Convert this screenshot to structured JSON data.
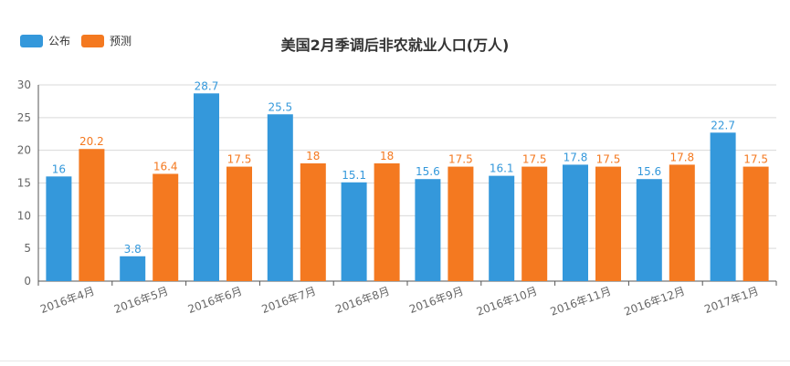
{
  "legend": {
    "items": [
      {
        "label": "公布",
        "color": "#3498DB"
      },
      {
        "label": "预测",
        "color": "#F47920"
      }
    ]
  },
  "chart_data": {
    "type": "bar",
    "title": "美国2月季调后非农就业人口(万人)",
    "xlabel": "",
    "ylabel": "",
    "categories": [
      "2016年4月",
      "2016年5月",
      "2016年6月",
      "2016年7月",
      "2016年8月",
      "2016年9月",
      "2016年10月",
      "2016年11月",
      "2016年12月",
      "2017年1月"
    ],
    "series": [
      {
        "name": "公布",
        "color": "#3498DB",
        "values": [
          16,
          3.8,
          28.7,
          25.5,
          15.1,
          15.6,
          16.1,
          17.8,
          15.6,
          22.7
        ]
      },
      {
        "name": "预测",
        "color": "#F47920",
        "values": [
          20.2,
          16.4,
          17.5,
          18,
          18,
          17.5,
          17.5,
          17.5,
          17.8,
          17.5
        ]
      }
    ],
    "ylim": [
      0,
      30
    ],
    "yticks": [
      0,
      5,
      10,
      15,
      20,
      25,
      30
    ],
    "grid": true,
    "legend_position": "top-left"
  }
}
